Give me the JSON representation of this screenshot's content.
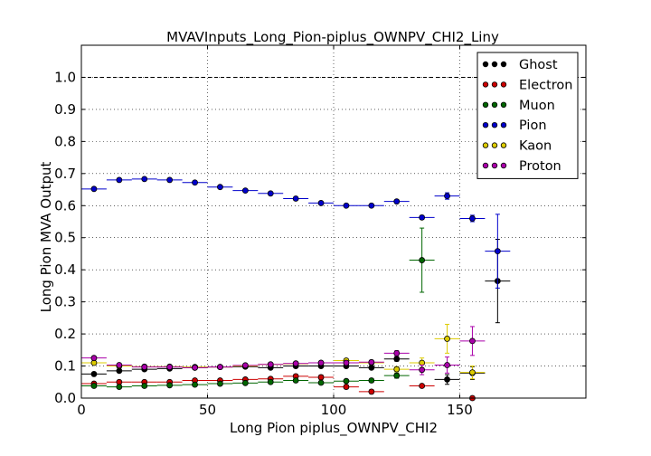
{
  "chart_data": {
    "type": "scatter",
    "title": "MVAVInputs_Long_Pion-piplus_OWNPV_CHI2_Liny",
    "xlabel": "Long Pion piplus_OWNPV_CHI2",
    "ylabel": "Long Pion MVA Output",
    "xlim": [
      0,
      200
    ],
    "ylim": [
      0.0,
      1.1
    ],
    "x_ticks": [
      "0",
      "50",
      "100",
      "150"
    ],
    "y_ticks": [
      "0.0",
      "0.1",
      "0.2",
      "0.3",
      "0.4",
      "0.5",
      "0.6",
      "0.7",
      "0.8",
      "0.9",
      "1.0"
    ],
    "grid": true,
    "reference_line_y": 1.0,
    "legend_position": "top-right",
    "bin_half_width": 5,
    "series": [
      {
        "name": "Ghost",
        "color": "#000000",
        "x": [
          5,
          15,
          25,
          35,
          45,
          55,
          65,
          75,
          85,
          95,
          105,
          115,
          125,
          145,
          155,
          165
        ],
        "y": [
          0.075,
          0.085,
          0.09,
          0.092,
          0.095,
          0.097,
          0.098,
          0.095,
          0.1,
          0.1,
          0.1,
          0.095,
          0.122,
          0.058,
          0.078,
          0.365
        ],
        "err": [
          0.004,
          0.003,
          0.003,
          0.003,
          0.003,
          0.003,
          0.003,
          0.003,
          0.004,
          0.004,
          0.005,
          0.005,
          0.007,
          0.015,
          0.02,
          0.13
        ]
      },
      {
        "name": "Electron",
        "color": "#cc0000",
        "x": [
          5,
          15,
          25,
          35,
          45,
          55,
          65,
          75,
          85,
          95,
          105,
          115,
          135,
          155
        ],
        "y": [
          0.045,
          0.05,
          0.05,
          0.05,
          0.055,
          0.055,
          0.058,
          0.06,
          0.068,
          0.065,
          0.035,
          0.02,
          0.038,
          0.0
        ],
        "err": [
          0.004,
          0.004,
          0.004,
          0.004,
          0.004,
          0.004,
          0.005,
          0.005,
          0.006,
          0.007,
          0.006,
          0.006,
          0.005,
          0.005
        ]
      },
      {
        "name": "Muon",
        "color": "#006600",
        "x": [
          5,
          15,
          25,
          35,
          45,
          55,
          65,
          75,
          85,
          95,
          105,
          115,
          125,
          135
        ],
        "y": [
          0.038,
          0.035,
          0.038,
          0.04,
          0.042,
          0.045,
          0.047,
          0.05,
          0.055,
          0.048,
          0.053,
          0.055,
          0.07,
          0.43
        ],
        "err": [
          0.003,
          0.003,
          0.003,
          0.003,
          0.003,
          0.003,
          0.003,
          0.004,
          0.004,
          0.004,
          0.005,
          0.006,
          0.008,
          0.1
        ]
      },
      {
        "name": "Pion",
        "color": "#0000cc",
        "x": [
          5,
          15,
          25,
          35,
          45,
          55,
          65,
          75,
          85,
          95,
          105,
          115,
          125,
          135,
          145,
          155,
          165
        ],
        "y": [
          0.652,
          0.68,
          0.683,
          0.68,
          0.672,
          0.658,
          0.647,
          0.638,
          0.622,
          0.608,
          0.6,
          0.6,
          0.613,
          0.563,
          0.63,
          0.56,
          0.458
        ],
        "err": [
          0.003,
          0.002,
          0.002,
          0.002,
          0.002,
          0.002,
          0.002,
          0.002,
          0.003,
          0.003,
          0.003,
          0.004,
          0.005,
          0.006,
          0.01,
          0.01,
          0.115
        ]
      },
      {
        "name": "Kaon",
        "color": "#ddcc00",
        "x": [
          5,
          15,
          25,
          35,
          45,
          55,
          65,
          75,
          85,
          95,
          105,
          115,
          125,
          135,
          145,
          155
        ],
        "y": [
          0.11,
          0.1,
          0.098,
          0.098,
          0.097,
          0.097,
          0.1,
          0.105,
          0.107,
          0.11,
          0.117,
          0.11,
          0.09,
          0.11,
          0.185,
          0.08
        ],
        "err": [
          0.005,
          0.004,
          0.004,
          0.004,
          0.004,
          0.004,
          0.004,
          0.004,
          0.005,
          0.005,
          0.006,
          0.006,
          0.008,
          0.015,
          0.045,
          0.02
        ]
      },
      {
        "name": "Proton",
        "color": "#aa00aa",
        "x": [
          5,
          15,
          25,
          35,
          45,
          55,
          65,
          75,
          85,
          95,
          105,
          115,
          125,
          135,
          145,
          155
        ],
        "y": [
          0.125,
          0.103,
          0.097,
          0.097,
          0.095,
          0.097,
          0.102,
          0.105,
          0.108,
          0.11,
          0.11,
          0.112,
          0.14,
          0.088,
          0.103,
          0.178
        ],
        "err": [
          0.005,
          0.004,
          0.004,
          0.004,
          0.004,
          0.004,
          0.004,
          0.004,
          0.005,
          0.005,
          0.006,
          0.006,
          0.008,
          0.015,
          0.025,
          0.045
        ]
      }
    ]
  }
}
